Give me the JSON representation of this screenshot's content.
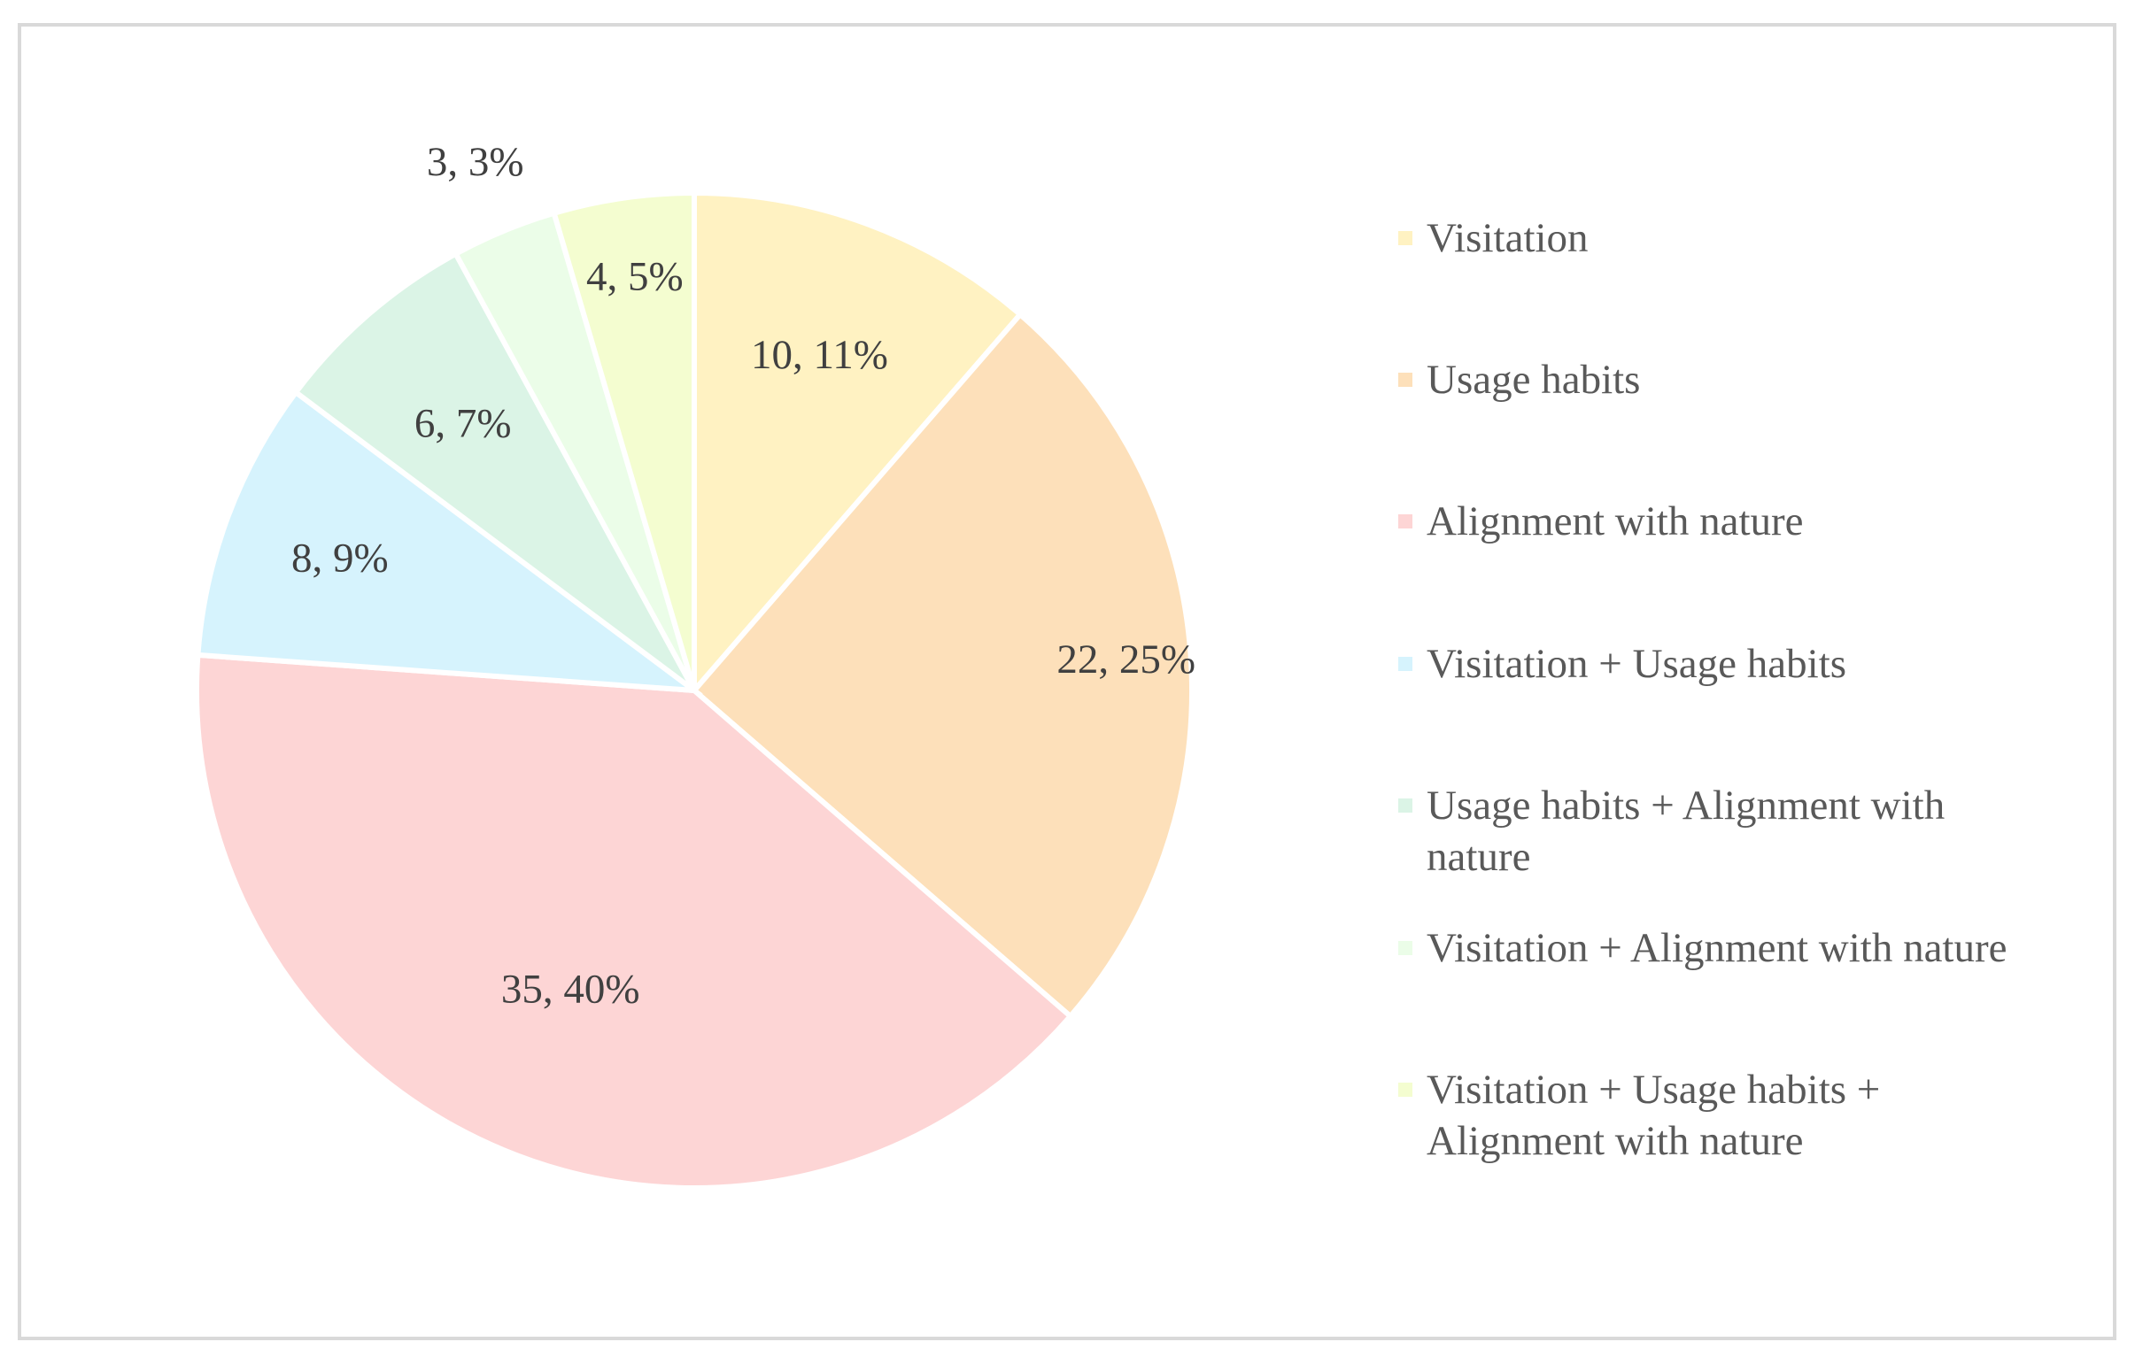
{
  "chart_data": {
    "type": "pie",
    "title": "",
    "start_angle_deg": 0,
    "direction": "clockwise",
    "legend_position": "right",
    "slices": [
      {
        "name": "Visitation",
        "value": 10,
        "percent": "11%",
        "label": "10, 11%",
        "color": "#FFF2C2"
      },
      {
        "name": "Usage habits",
        "value": 22,
        "percent": "25%",
        "label": "22, 25%",
        "color": "#FDE0BA"
      },
      {
        "name": "Alignment with nature",
        "value": 35,
        "percent": "40%",
        "label": "35, 40%",
        "color": "#FDD5D5"
      },
      {
        "name": "Visitation + Usage habits",
        "value": 8,
        "percent": "9%",
        "label": "8, 9%",
        "color": "#D6F3FD"
      },
      {
        "name": "Usage habits + Alignment with nature",
        "value": 6,
        "percent": "7%",
        "label": "6, 7%",
        "color": "#DBF4E6"
      },
      {
        "name": "Visitation + Alignment with nature",
        "value": 3,
        "percent": "3%",
        "label": "3, 3%",
        "color": "#EBFDE8"
      },
      {
        "name": "Visitation + Usage habits + Alignment with nature",
        "value": 4,
        "percent": "5%",
        "label": "4, 5%",
        "color": "#F4FDD0"
      }
    ]
  },
  "legend": {
    "items": [
      {
        "label": "Visitation",
        "color": "#FFF2C2"
      },
      {
        "label": "Usage habits",
        "color": "#FDE0BA"
      },
      {
        "label": "Alignment with nature",
        "color": "#FDD5D5"
      },
      {
        "label": "Visitation + Usage habits",
        "color": "#D6F3FD"
      },
      {
        "label": "Usage habits + Alignment with nature",
        "color": "#DBF4E6"
      },
      {
        "label": "Visitation + Alignment with nature",
        "color": "#EBFDE8"
      },
      {
        "label": "Visitation + Usage habits + Alignment with nature",
        "color": "#F4FDD0"
      }
    ]
  }
}
